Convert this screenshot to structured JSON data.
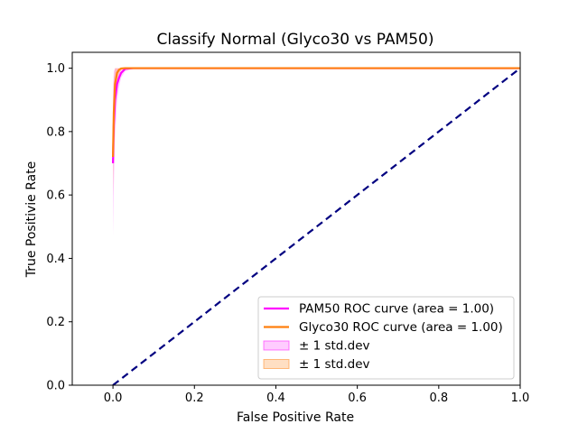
{
  "chart_data": {
    "type": "line",
    "title": "Classify Normal (Glyco30 vs PAM50)",
    "xlabel": "False Positive Rate",
    "ylabel": "True Positivie Rate",
    "xlim": [
      -0.1,
      1.0
    ],
    "ylim": [
      0.0,
      1.05
    ],
    "xticks": [
      0.0,
      0.2,
      0.4,
      0.6,
      0.8,
      1.0
    ],
    "yticks": [
      0.0,
      0.2,
      0.4,
      0.6,
      0.8,
      1.0
    ],
    "xtick_labels": [
      "0.0",
      "0.2",
      "0.4",
      "0.6",
      "0.8",
      "1.0"
    ],
    "ytick_labels": [
      "0.0",
      "0.2",
      "0.4",
      "0.6",
      "0.8",
      "1.0"
    ],
    "grid": false,
    "legend_position": "lower-right",
    "series": [
      {
        "name": "PAM50 ROC curve (area = 1.00)",
        "color": "#ff00ff",
        "style": "solid",
        "x": [
          0.0,
          0.002,
          0.005,
          0.01,
          0.015,
          0.02,
          0.03,
          0.05,
          0.1,
          0.5,
          1.0
        ],
        "y": [
          0.7,
          0.82,
          0.9,
          0.95,
          0.97,
          0.985,
          0.998,
          1.0,
          1.0,
          1.0,
          1.0
        ]
      },
      {
        "name": "Glyco30 ROC curve (area = 1.00)",
        "color": "#ff7f0e",
        "style": "solid",
        "x": [
          0.0,
          0.002,
          0.005,
          0.01,
          0.015,
          0.02,
          0.03,
          0.05,
          0.1,
          0.5,
          1.0
        ],
        "y": [
          0.72,
          0.86,
          0.95,
          0.985,
          0.995,
          0.999,
          1.0,
          1.0,
          1.0,
          1.0,
          1.0
        ]
      },
      {
        "name": "",
        "color": "#000080",
        "style": "dashed",
        "x": [
          0.0,
          1.0
        ],
        "y": [
          0.0,
          1.0
        ]
      }
    ],
    "bands": [
      {
        "name": "± 1 std.dev",
        "color": "#ff00ff",
        "opacity": 0.2,
        "x": [
          0.0,
          0.002,
          0.005,
          0.01,
          0.015,
          0.02,
          0.03,
          0.05,
          1.0
        ],
        "lower": [
          0.47,
          0.62,
          0.78,
          0.89,
          0.94,
          0.97,
          0.99,
          1.0,
          1.0
        ],
        "upper": [
          0.93,
          0.99,
          1.0,
          1.0,
          1.0,
          1.0,
          1.0,
          1.0,
          1.0
        ]
      },
      {
        "name": "± 1 std.dev",
        "color": "#ff7f0e",
        "opacity": 0.25,
        "x": [
          0.0,
          0.002,
          0.005,
          0.01,
          0.015,
          0.02,
          0.03,
          0.05,
          1.0
        ],
        "lower": [
          0.6,
          0.74,
          0.88,
          0.96,
          0.98,
          0.995,
          1.0,
          1.0,
          1.0
        ],
        "upper": [
          0.88,
          0.97,
          1.0,
          1.0,
          1.0,
          1.0,
          1.0,
          1.0,
          1.0
        ]
      }
    ]
  }
}
